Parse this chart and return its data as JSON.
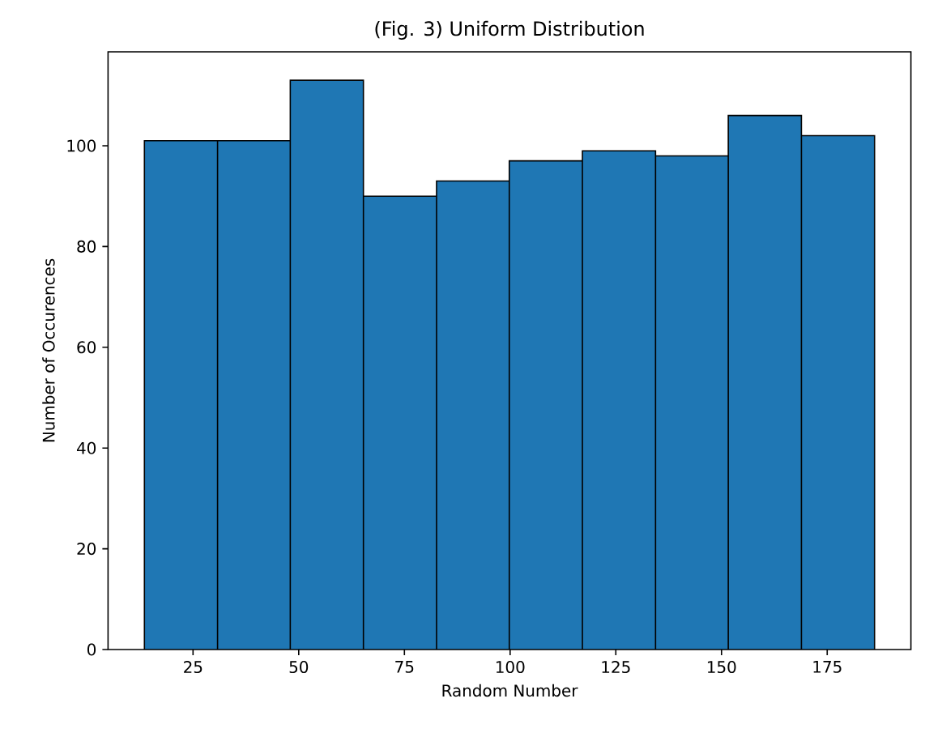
{
  "chart_data": {
    "type": "histogram",
    "title": "(Fig. 3) Uniform Distribution",
    "xlabel": "Random Number",
    "ylabel": "Number of Occurences",
    "bins": [
      13.5,
      30.8,
      48.0,
      65.3,
      82.6,
      99.8,
      117.1,
      134.4,
      151.6,
      168.9,
      186.2
    ],
    "values": [
      101,
      101,
      113,
      90,
      93,
      97,
      99,
      98,
      106,
      102
    ],
    "color": "#1f77b4",
    "xlim": [
      4.9,
      194.8
    ],
    "ylim": [
      0,
      118.65
    ],
    "xticks": [
      25,
      50,
      75,
      100,
      125,
      150,
      175
    ],
    "yticks": [
      0,
      20,
      40,
      60,
      80,
      100
    ]
  }
}
